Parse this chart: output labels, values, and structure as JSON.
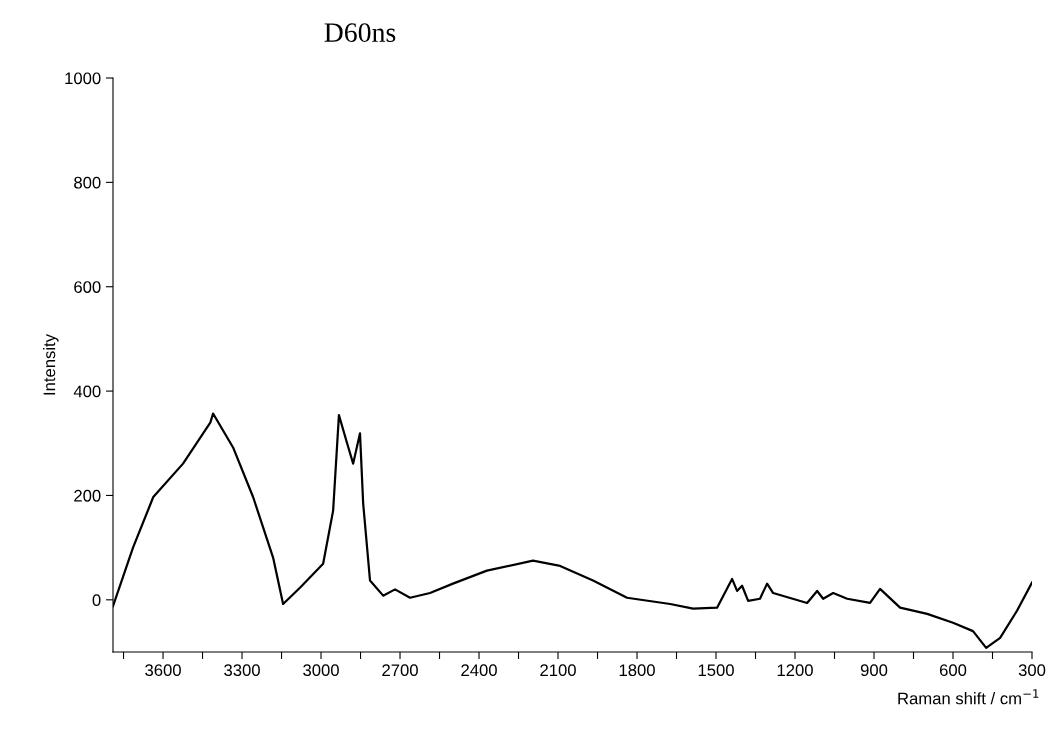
{
  "chart_data": {
    "type": "line",
    "title": "D60ns",
    "xlabel": "Raman shift / cm$^{−1}$",
    "ylabel": "Intensity",
    "x": [
      3790,
      3714,
      3637,
      3524,
      3420,
      3410,
      3334,
      3258,
      3182,
      3144,
      3080,
      2992,
      2954,
      2932,
      2901,
      2878,
      2852,
      2840,
      2814,
      2764,
      2719,
      2662,
      2586,
      2499,
      2370,
      2195,
      2092,
      1967,
      1838,
      1674,
      1587,
      1496,
      1439,
      1420,
      1401,
      1378,
      1333,
      1306,
      1283,
      1154,
      1116,
      1093,
      1055,
      1002,
      915,
      877,
      801,
      698,
      600,
      524,
      474,
      421,
      357,
      300
    ],
    "series": [
      {
        "color": "#000000",
        "values": [
          -12,
          100,
          197,
          261,
          340,
          357,
          292,
          197,
          81,
          -8,
          23,
          69,
          171,
          354,
          300,
          261,
          319,
          185,
          37,
          8,
          20,
          4,
          13,
          31,
          56,
          75,
          65,
          37,
          4,
          -8,
          -17,
          -15,
          40,
          17,
          27,
          -2,
          2,
          31,
          13,
          -6,
          17,
          2,
          13,
          2,
          -6,
          21,
          -15,
          -27,
          -44,
          -60,
          -92,
          -73,
          -21,
          33
        ]
      }
    ],
    "xlim": [
      3790,
      300
    ],
    "ylim": [
      -100,
      1000
    ],
    "xticks": [
      {
        "value": 3750,
        "label": null
      },
      3600,
      {
        "value": 3450,
        "label": null
      },
      3300,
      {
        "value": 3150,
        "label": null
      },
      3000,
      {
        "value": 2850,
        "label": null
      },
      2700,
      {
        "value": 2550,
        "label": null
      },
      2400,
      {
        "value": 2250,
        "label": null
      },
      2100,
      {
        "value": 1950,
        "label": null
      },
      1800,
      {
        "value": 1650,
        "label": null
      },
      1500,
      {
        "value": 1350,
        "label": null
      },
      1200,
      {
        "value": 1050,
        "label": null
      },
      900,
      {
        "value": 750,
        "label": null
      },
      600,
      {
        "value": 450,
        "label": null
      },
      300
    ],
    "yticks": [
      0,
      200,
      400,
      600,
      800,
      1000
    ],
    "grid": false,
    "marker": "none",
    "line_style": "solid"
  }
}
